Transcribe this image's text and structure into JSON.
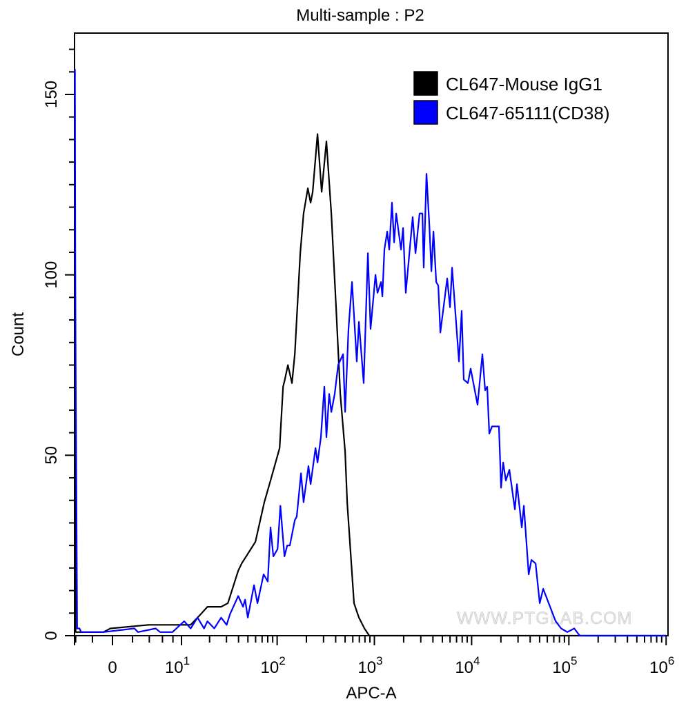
{
  "chart_data": {
    "type": "line",
    "title": "Multi-sample : P2",
    "xlabel": "APC-A",
    "ylabel": "Count",
    "x_scale": "biexponential",
    "xlim": [
      -4.1,
      1000000
    ],
    "ylim": [
      0,
      167
    ],
    "x_ticks": [
      {
        "value": 0,
        "label": "0",
        "exp": ""
      },
      {
        "value": 10,
        "label": "10",
        "exp": "1"
      },
      {
        "value": 100,
        "label": "10",
        "exp": "2"
      },
      {
        "value": 1000,
        "label": "10",
        "exp": "3"
      },
      {
        "value": 10000,
        "label": "10",
        "exp": "4"
      },
      {
        "value": 100000,
        "label": "10",
        "exp": "5"
      },
      {
        "value": 1000000,
        "label": "10",
        "exp": "6"
      }
    ],
    "y_ticks": [
      0,
      50,
      100,
      150
    ],
    "grid": false,
    "legend_position": "top-right",
    "watermark": "WWW.PTGLAB.COM",
    "series": [
      {
        "name": "CL647-Mouse IgG1",
        "color": "#000000",
        "points": [
          [
            -4.1,
            60
          ],
          [
            -4.0,
            1
          ],
          [
            -0.87,
            1
          ],
          [
            -0.2,
            2
          ],
          [
            3.9,
            3
          ],
          [
            7.2,
            3
          ],
          [
            7.9,
            3
          ],
          [
            12.6,
            3
          ],
          [
            16.2,
            6
          ],
          [
            19.0,
            8
          ],
          [
            26.4,
            8
          ],
          [
            31.0,
            9
          ],
          [
            39.7,
            18
          ],
          [
            43.1,
            20
          ],
          [
            59.7,
            26
          ],
          [
            73.8,
            37
          ],
          [
            85.5,
            43
          ],
          [
            106,
            52
          ],
          [
            115,
            69
          ],
          [
            120,
            71
          ],
          [
            129,
            75
          ],
          [
            142,
            70
          ],
          [
            152,
            78
          ],
          [
            173,
            106
          ],
          [
            187,
            117
          ],
          [
            207,
            124
          ],
          [
            221,
            120
          ],
          [
            232,
            123
          ],
          [
            260,
            139
          ],
          [
            287,
            123
          ],
          [
            321,
            137
          ],
          [
            361,
            117
          ],
          [
            404,
            91
          ],
          [
            446,
            67
          ],
          [
            500,
            51
          ],
          [
            525,
            37
          ],
          [
            618,
            9
          ],
          [
            693,
            5
          ],
          [
            791,
            2
          ],
          [
            886,
            0
          ],
          [
            1042,
            0
          ],
          [
            1570,
            0
          ],
          [
            2560,
            0
          ],
          [
            3020,
            0
          ],
          [
            1000000,
            0
          ]
        ]
      },
      {
        "name": "CL647-65111(CD38)",
        "color": "#0000ff",
        "points": [
          [
            -4.1,
            157
          ],
          [
            -4.05,
            104
          ],
          [
            -4.0,
            77
          ],
          [
            -3.8,
            2
          ],
          [
            -3.5,
            2
          ],
          [
            -3.3,
            1
          ],
          [
            -0.87,
            1
          ],
          [
            2.2,
            2
          ],
          [
            2.6,
            1
          ],
          [
            4.9,
            2
          ],
          [
            5.6,
            1
          ],
          [
            6.6,
            1
          ],
          [
            7.9,
            1
          ],
          [
            10.7,
            4
          ],
          [
            12.6,
            2
          ],
          [
            14.9,
            5
          ],
          [
            17.5,
            2
          ],
          [
            19.0,
            4
          ],
          [
            22.4,
            2
          ],
          [
            26.4,
            5
          ],
          [
            30.1,
            3
          ],
          [
            32.7,
            6
          ],
          [
            39.7,
            11
          ],
          [
            44.5,
            8
          ],
          [
            46.8,
            10
          ],
          [
            49.9,
            5
          ],
          [
            57.8,
            14
          ],
          [
            62.7,
            9
          ],
          [
            72.6,
            17
          ],
          [
            80.1,
            15
          ],
          [
            85.5,
            30
          ],
          [
            91.4,
            22
          ],
          [
            101,
            24
          ],
          [
            108,
            36
          ],
          [
            119,
            22
          ],
          [
            127,
            25
          ],
          [
            135,
            25
          ],
          [
            152,
            32
          ],
          [
            159,
            33
          ],
          [
            176,
            45
          ],
          [
            187,
            37
          ],
          [
            210,
            47
          ],
          [
            221,
            42
          ],
          [
            248,
            52
          ],
          [
            260,
            48
          ],
          [
            282,
            55
          ],
          [
            306,
            69
          ],
          [
            321,
            55
          ],
          [
            343,
            67
          ],
          [
            361,
            62
          ],
          [
            391,
            67
          ],
          [
            424,
            75
          ],
          [
            476,
            78
          ],
          [
            500,
            62
          ],
          [
            542,
            85
          ],
          [
            589,
            98
          ],
          [
            659,
            76
          ],
          [
            693,
            87
          ],
          [
            776,
            70
          ],
          [
            857,
            106
          ],
          [
            914,
            85
          ],
          [
            1026,
            100
          ],
          [
            1076,
            95
          ],
          [
            1169,
            98
          ],
          [
            1208,
            94
          ],
          [
            1268,
            107
          ],
          [
            1355,
            112
          ],
          [
            1422,
            107
          ],
          [
            1517,
            120
          ],
          [
            1596,
            109
          ],
          [
            1675,
            117
          ],
          [
            1878,
            107
          ],
          [
            1972,
            113
          ],
          [
            2104,
            95
          ],
          [
            2478,
            116
          ],
          [
            2648,
            106
          ],
          [
            2917,
            117
          ],
          [
            3117,
            117
          ],
          [
            3219,
            102
          ],
          [
            3436,
            128
          ],
          [
            3673,
            114
          ],
          [
            3855,
            101
          ],
          [
            4049,
            112
          ],
          [
            4325,
            98
          ],
          [
            4539,
            97
          ],
          [
            4766,
            84
          ],
          [
            5610,
            99
          ],
          [
            5995,
            91
          ],
          [
            6293,
            102
          ],
          [
            7413,
            76
          ],
          [
            7907,
            90
          ],
          [
            8300,
            71
          ],
          [
            9160,
            70
          ],
          [
            9775,
            74
          ],
          [
            11510,
            64
          ],
          [
            12910,
            78
          ],
          [
            13780,
            68
          ],
          [
            14460,
            69
          ],
          [
            15200,
            56
          ],
          [
            16220,
            58
          ],
          [
            19100,
            58
          ],
          [
            20090,
            41
          ],
          [
            21090,
            48
          ],
          [
            22500,
            43
          ],
          [
            24430,
            46
          ],
          [
            27860,
            35
          ],
          [
            29240,
            42
          ],
          [
            32810,
            30
          ],
          [
            34440,
            36
          ],
          [
            38640,
            17
          ],
          [
            41210,
            21
          ],
          [
            45500,
            20
          ],
          [
            50120,
            9
          ],
          [
            54450,
            13
          ],
          [
            64120,
            8
          ],
          [
            73110,
            4
          ],
          [
            83180,
            2
          ],
          [
            96370,
            1
          ],
          [
            113500,
            2
          ],
          [
            129400,
            0
          ],
          [
            1000000,
            0
          ]
        ]
      }
    ]
  }
}
